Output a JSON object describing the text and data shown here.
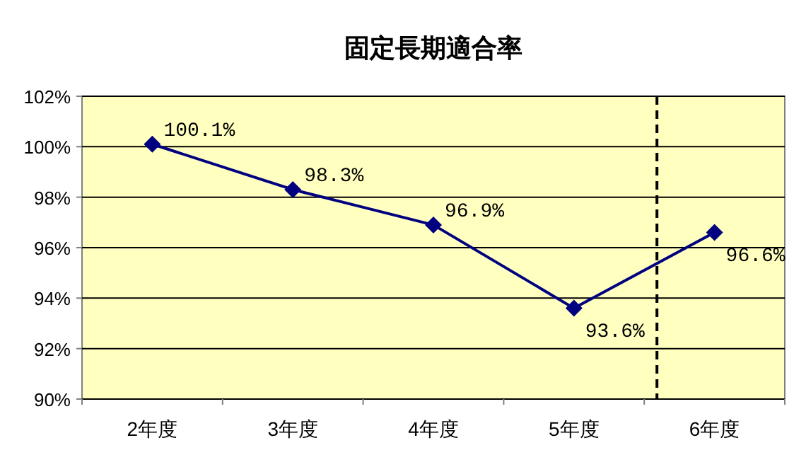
{
  "chart_data": {
    "type": "line",
    "title": "固定長期適合率",
    "categories": [
      "2年度",
      "3年度",
      "4年度",
      "5年度",
      "6年度"
    ],
    "series": [
      {
        "color": "#000080",
        "values": [
          100.1,
          98.3,
          96.9,
          93.6,
          96.6
        ],
        "value_labels": [
          "100.1%",
          "98.3%",
          "96.9%",
          "93.6%",
          "96.6%"
        ]
      }
    ],
    "ylim": [
      90,
      102
    ],
    "yticks": [
      {
        "value": 90,
        "label": "90%"
      },
      {
        "value": 92,
        "label": "92%"
      },
      {
        "value": 94,
        "label": "94%"
      },
      {
        "value": 96,
        "label": "96%"
      },
      {
        "value": 98,
        "label": "98%"
      },
      {
        "value": 100,
        "label": "100%"
      },
      {
        "value": 102,
        "label": "102%"
      }
    ],
    "grid": "y",
    "marker": "diamond",
    "line_style": "solid",
    "ref_lines": [
      {
        "axis": "x",
        "value": "6年度",
        "line_style": "dashed",
        "color": "#000000"
      }
    ]
  }
}
